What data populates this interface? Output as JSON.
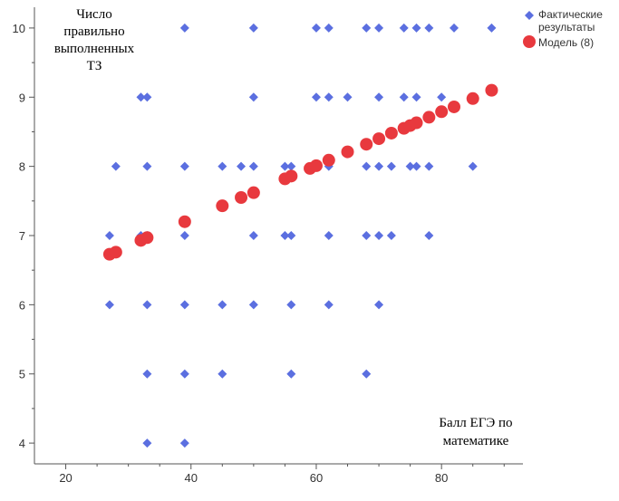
{
  "chart_data": {
    "type": "scatter",
    "title": "",
    "ylabel_lines": [
      "Число",
      "правильно",
      "выполненных",
      "ТЗ"
    ],
    "xlabel_lines": [
      "Балл ЕГЭ по",
      "математике"
    ],
    "xlim": [
      15,
      93
    ],
    "ylim": [
      3.7,
      10.3
    ],
    "x_ticks": [
      20,
      40,
      60,
      80
    ],
    "y_ticks": [
      4,
      5,
      6,
      7,
      8,
      9,
      10
    ],
    "grid": false,
    "legend_position": "top-right",
    "series": [
      {
        "name": "Фактические результаты",
        "legend_lines": [
          "Фактические",
          "результаты"
        ],
        "marker": "diamond",
        "color": "#5b6fe0",
        "points": [
          [
            39,
            10
          ],
          [
            50,
            10
          ],
          [
            60,
            10
          ],
          [
            62,
            10
          ],
          [
            68,
            10
          ],
          [
            70,
            10
          ],
          [
            74,
            10
          ],
          [
            76,
            10
          ],
          [
            78,
            10
          ],
          [
            82,
            10
          ],
          [
            88,
            10
          ],
          [
            32,
            9
          ],
          [
            33,
            9
          ],
          [
            50,
            9
          ],
          [
            60,
            9
          ],
          [
            62,
            9
          ],
          [
            65,
            9
          ],
          [
            70,
            9
          ],
          [
            74,
            9
          ],
          [
            76,
            9
          ],
          [
            80,
            9
          ],
          [
            28,
            8
          ],
          [
            33,
            8
          ],
          [
            39,
            8
          ],
          [
            45,
            8
          ],
          [
            48,
            8
          ],
          [
            50,
            8
          ],
          [
            55,
            8
          ],
          [
            56,
            8
          ],
          [
            62,
            8
          ],
          [
            68,
            8
          ],
          [
            70,
            8
          ],
          [
            72,
            8
          ],
          [
            75,
            8
          ],
          [
            76,
            8
          ],
          [
            78,
            8
          ],
          [
            85,
            8
          ],
          [
            27,
            7
          ],
          [
            32,
            7
          ],
          [
            33,
            7
          ],
          [
            39,
            7
          ],
          [
            50,
            7
          ],
          [
            55,
            7
          ],
          [
            56,
            7
          ],
          [
            62,
            7
          ],
          [
            68,
            7
          ],
          [
            70,
            7
          ],
          [
            72,
            7
          ],
          [
            78,
            7
          ],
          [
            27,
            6
          ],
          [
            33,
            6
          ],
          [
            39,
            6
          ],
          [
            45,
            6
          ],
          [
            50,
            6
          ],
          [
            56,
            6
          ],
          [
            62,
            6
          ],
          [
            70,
            6
          ],
          [
            33,
            5
          ],
          [
            39,
            5
          ],
          [
            45,
            5
          ],
          [
            56,
            5
          ],
          [
            68,
            5
          ],
          [
            33,
            4
          ],
          [
            39,
            4
          ]
        ]
      },
      {
        "name": "Модель (8)",
        "legend_lines": [
          "Модель (8)"
        ],
        "marker": "circle",
        "color": "#e8393e",
        "points": [
          [
            27,
            6.73
          ],
          [
            28,
            6.76
          ],
          [
            32,
            6.93
          ],
          [
            33,
            6.97
          ],
          [
            39,
            7.2
          ],
          [
            45,
            7.43
          ],
          [
            48,
            7.55
          ],
          [
            50,
            7.62
          ],
          [
            55,
            7.82
          ],
          [
            56,
            7.86
          ],
          [
            59,
            7.97
          ],
          [
            60,
            8.01
          ],
          [
            62,
            8.09
          ],
          [
            65,
            8.21
          ],
          [
            68,
            8.32
          ],
          [
            70,
            8.4
          ],
          [
            72,
            8.48
          ],
          [
            74,
            8.55
          ],
          [
            75,
            8.59
          ],
          [
            76,
            8.63
          ],
          [
            78,
            8.71
          ],
          [
            80,
            8.79
          ],
          [
            82,
            8.86
          ],
          [
            85,
            8.98
          ],
          [
            88,
            9.1
          ]
        ]
      }
    ]
  }
}
